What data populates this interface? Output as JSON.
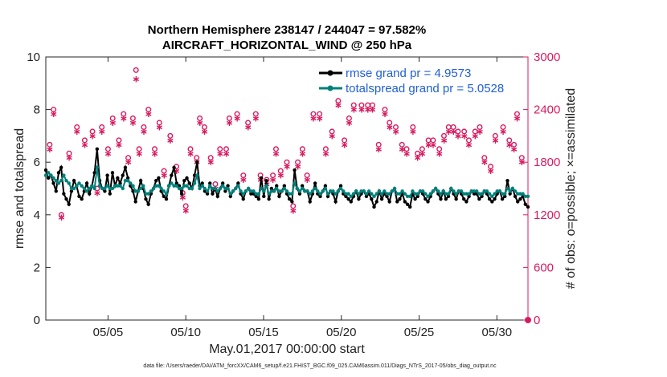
{
  "chart_data": {
    "type": "line",
    "title_line1": "Northern Hemisphere 238147 / 244047 = 97.582%",
    "title_line2": "AIRCRAFT_HORIZONTAL_WIND @ 250 hPa",
    "xlabel": "May.01,2017 00:00:00 start",
    "ylabel_left": "rmse and totalspread",
    "ylabel_right": "# of obs: o=possible; ×=assimilated",
    "footnote": "data file: /Users/raeder/DAI/ATM_forcXX/CAM6_setup/f.e21.FHIST_BGC.f09_025.CAM6assim.011/Diags_NTrS_2017-05/obs_diag_output.nc",
    "xlim": [
      1,
      32
    ],
    "ylim_left": [
      0,
      10
    ],
    "ylim_right": [
      0,
      3000
    ],
    "x_ticks": [
      5,
      10,
      15,
      20,
      25,
      30
    ],
    "x_tick_labels": [
      "05/05",
      "05/10",
      "05/15",
      "05/20",
      "05/25",
      "05/30"
    ],
    "y_left_ticks": [
      0,
      2,
      4,
      6,
      8,
      10
    ],
    "y_left_tick_labels": [
      "0",
      "2",
      "4",
      "6",
      "8",
      "10"
    ],
    "y_right_ticks": [
      0,
      600,
      1200,
      1800,
      2400,
      3000
    ],
    "y_right_tick_labels": [
      "0",
      "600",
      "1200",
      "1800",
      "2400",
      "3000"
    ],
    "colors": {
      "rmse": "#000000",
      "spread": "#00807a",
      "obs": "#d81b60",
      "legend_text": "#1f5fd6",
      "axis": "#262626",
      "right_axis": "#d81b60"
    },
    "series": [
      {
        "name": "rmse grand pr = 4.9573",
        "values": [
          5.7,
          5.4,
          5.5,
          5.2,
          4.9,
          5.6,
          5.8,
          4.8,
          4.6,
          4.4,
          4.9,
          5.3,
          5.1,
          4.7,
          4.6,
          4.9,
          5.2,
          4.8,
          5.1,
          5.6,
          6.5,
          5.3,
          5.0,
          4.9,
          5.5,
          4.8,
          5.6,
          5.1,
          5.4,
          5.2,
          5.5,
          5.8,
          5.4,
          5.1,
          4.9,
          4.5,
          4.9,
          5.3,
          5.0,
          4.6,
          4.4,
          4.8,
          5.0,
          5.3,
          5.4,
          4.9,
          4.7,
          4.6,
          5.1,
          5.5,
          5.8,
          5.2,
          5.1,
          4.8,
          5.3,
          5.4,
          5.2,
          5.0,
          5.5,
          6.0,
          5.1,
          5.2,
          4.9,
          4.8,
          5.2,
          4.8,
          5.0,
          4.7,
          5.0,
          5.2,
          4.9,
          5.1,
          4.7,
          4.9,
          5.0,
          5.2,
          4.8,
          4.6,
          4.9,
          5.0,
          4.8,
          4.8,
          4.7,
          4.6,
          5.4,
          4.7,
          5.3,
          4.6,
          5.0,
          4.9,
          5.1,
          4.7,
          4.9,
          5.1,
          4.8,
          4.6,
          4.5,
          5.7,
          5.0,
          4.8,
          5.1,
          4.9,
          4.9,
          4.5,
          4.8,
          5.2,
          4.8,
          4.7,
          4.9,
          5.1,
          4.7,
          4.9,
          4.8,
          4.5,
          4.9,
          5.1,
          4.8,
          4.7,
          4.6,
          4.5,
          4.7,
          4.9,
          4.6,
          4.8,
          4.9,
          4.7,
          4.8,
          4.6,
          4.3,
          4.5,
          4.9,
          4.6,
          4.8,
          4.7,
          4.5,
          4.9,
          5.0,
          4.5,
          4.6,
          4.8,
          4.5,
          4.4,
          4.3,
          4.8,
          4.6,
          4.7,
          4.9,
          4.8,
          4.6,
          4.5,
          4.7,
          4.9,
          5.0,
          4.8,
          4.6,
          4.9,
          4.6,
          4.7,
          5.0,
          4.8,
          4.6,
          4.9,
          4.8,
          4.6,
          4.5,
          4.7,
          4.9,
          4.8,
          4.8,
          4.6,
          4.7,
          4.9,
          4.8,
          4.6,
          4.5,
          4.6,
          4.8,
          4.9,
          4.6,
          4.7,
          5.3,
          4.8,
          5.0,
          4.7,
          4.5,
          4.6,
          4.7,
          4.4,
          4.3
        ]
      },
      {
        "name": "totalspread grand pr = 5.0528",
        "values": [
          5.5,
          5.6,
          5.5,
          5.4,
          5.3,
          5.2,
          5.3,
          5.5,
          5.3,
          5.2,
          5.0,
          5.0,
          5.1,
          5.2,
          5.1,
          5.0,
          4.9,
          5.0,
          5.1,
          5.0,
          5.8,
          5.1,
          5.0,
          5.0,
          5.1,
          5.0,
          5.0,
          5.1,
          5.1,
          5.1,
          5.0,
          5.3,
          5.3,
          5.2,
          5.1,
          4.9,
          4.9,
          5.0,
          5.1,
          4.8,
          4.8,
          4.9,
          5.0,
          5.1,
          5.1,
          5.0,
          4.9,
          4.8,
          5.1,
          5.2,
          5.1,
          5.1,
          5.0,
          5.0,
          5.1,
          5.1,
          5.0,
          5.0,
          5.2,
          5.5,
          5.0,
          5.1,
          5.0,
          4.9,
          5.1,
          5.0,
          5.0,
          4.9,
          5.0,
          5.1,
          5.0,
          5.0,
          4.8,
          4.9,
          5.0,
          5.1,
          4.9,
          4.8,
          4.9,
          5.0,
          4.9,
          4.9,
          4.8,
          4.8,
          5.0,
          4.9,
          5.1,
          4.8,
          4.9,
          4.9,
          5.0,
          4.9,
          4.9,
          5.0,
          4.9,
          4.8,
          4.8,
          5.2,
          5.0,
          4.9,
          5.0,
          4.9,
          4.9,
          4.8,
          4.9,
          5.0,
          4.9,
          4.8,
          4.9,
          5.0,
          4.8,
          4.9,
          4.9,
          4.8,
          4.9,
          5.0,
          4.9,
          4.8,
          4.8,
          4.7,
          4.8,
          4.9,
          4.8,
          4.9,
          4.9,
          4.8,
          4.9,
          4.8,
          4.7,
          4.8,
          4.9,
          4.8,
          4.9,
          4.8,
          4.8,
          4.9,
          5.0,
          4.8,
          4.8,
          4.9,
          4.8,
          4.7,
          4.7,
          4.9,
          4.8,
          4.8,
          4.9,
          4.9,
          4.8,
          4.7,
          4.8,
          4.9,
          5.0,
          4.9,
          4.8,
          4.9,
          4.8,
          4.8,
          5.0,
          4.9,
          4.8,
          4.9,
          4.9,
          4.8,
          4.8,
          4.8,
          4.9,
          4.9,
          4.9,
          4.8,
          4.8,
          4.9,
          4.9,
          4.8,
          4.7,
          4.8,
          4.9,
          4.9,
          4.8,
          4.8,
          5.0,
          4.9,
          5.0,
          4.9,
          4.8,
          4.8,
          4.8,
          4.7,
          4.7
        ]
      }
    ],
    "obs_possible": [
      [
        1.25,
        2000
      ],
      [
        1.5,
        2400
      ],
      [
        2.0,
        1200
      ],
      [
        2.5,
        1900
      ],
      [
        3.0,
        2200
      ],
      [
        3.5,
        2050
      ],
      [
        4.0,
        2150
      ],
      [
        4.3,
        1500
      ],
      [
        4.6,
        2200
      ],
      [
        5.0,
        1950
      ],
      [
        5.3,
        2300
      ],
      [
        5.7,
        2050
      ],
      [
        6.0,
        2350
      ],
      [
        6.3,
        1850
      ],
      [
        6.6,
        2300
      ],
      [
        6.8,
        2850
      ],
      [
        7.0,
        1950
      ],
      [
        7.3,
        2200
      ],
      [
        7.6,
        2400
      ],
      [
        8.0,
        1950
      ],
      [
        8.3,
        2250
      ],
      [
        8.6,
        1700
      ],
      [
        9.0,
        2100
      ],
      [
        9.4,
        1750
      ],
      [
        9.8,
        1450
      ],
      [
        10.0,
        1300
      ],
      [
        10.3,
        1950
      ],
      [
        10.7,
        1850
      ],
      [
        10.9,
        2300
      ],
      [
        11.2,
        2200
      ],
      [
        11.6,
        1850
      ],
      [
        11.9,
        1550
      ],
      [
        12.2,
        1950
      ],
      [
        12.6,
        1950
      ],
      [
        12.8,
        2300
      ],
      [
        13.3,
        2350
      ],
      [
        13.7,
        1650
      ],
      [
        14.0,
        2250
      ],
      [
        14.5,
        2350
      ],
      [
        14.8,
        1650
      ],
      [
        15.2,
        1600
      ],
      [
        15.6,
        1650
      ],
      [
        15.8,
        1950
      ],
      [
        16.1,
        1700
      ],
      [
        16.5,
        1800
      ],
      [
        16.9,
        1300
      ],
      [
        17.2,
        1800
      ],
      [
        17.5,
        1950
      ],
      [
        17.8,
        1650
      ],
      [
        18.2,
        2350
      ],
      [
        18.6,
        2350
      ],
      [
        19.0,
        1950
      ],
      [
        19.4,
        2150
      ],
      [
        19.8,
        2500
      ],
      [
        20.2,
        2050
      ],
      [
        20.5,
        2300
      ],
      [
        20.8,
        2450
      ],
      [
        21.3,
        2450
      ],
      [
        21.7,
        2450
      ],
      [
        22.0,
        2450
      ],
      [
        22.4,
        2000
      ],
      [
        22.8,
        2400
      ],
      [
        23.1,
        2250
      ],
      [
        23.5,
        2200
      ],
      [
        23.9,
        2000
      ],
      [
        24.2,
        1950
      ],
      [
        24.6,
        2200
      ],
      [
        24.9,
        1900
      ],
      [
        25.2,
        1950
      ],
      [
        25.6,
        2050
      ],
      [
        25.9,
        2050
      ],
      [
        26.3,
        1950
      ],
      [
        26.6,
        2100
      ],
      [
        26.9,
        2200
      ],
      [
        27.2,
        2200
      ],
      [
        27.5,
        2150
      ],
      [
        27.9,
        2150
      ],
      [
        28.2,
        2050
      ],
      [
        28.6,
        2150
      ],
      [
        28.9,
        2200
      ],
      [
        29.2,
        1850
      ],
      [
        29.6,
        1750
      ],
      [
        29.9,
        2100
      ],
      [
        30.4,
        2200
      ],
      [
        30.8,
        2050
      ],
      [
        31.1,
        2000
      ],
      [
        31.3,
        2350
      ],
      [
        31.6,
        1850
      ]
    ],
    "obs_assimilated": [
      [
        1.25,
        1950
      ],
      [
        1.5,
        2350
      ],
      [
        2.0,
        1170
      ],
      [
        2.5,
        1850
      ],
      [
        3.0,
        2150
      ],
      [
        3.5,
        2000
      ],
      [
        4.0,
        2100
      ],
      [
        4.3,
        1450
      ],
      [
        4.6,
        2150
      ],
      [
        5.0,
        1900
      ],
      [
        5.3,
        2250
      ],
      [
        5.7,
        2000
      ],
      [
        6.0,
        2300
      ],
      [
        6.3,
        1800
      ],
      [
        6.6,
        2250
      ],
      [
        6.8,
        2750
      ],
      [
        7.0,
        1900
      ],
      [
        7.3,
        2150
      ],
      [
        7.6,
        2350
      ],
      [
        8.0,
        1900
      ],
      [
        8.3,
        2200
      ],
      [
        8.6,
        1650
      ],
      [
        9.0,
        2050
      ],
      [
        9.4,
        1700
      ],
      [
        9.8,
        1400
      ],
      [
        10.0,
        1250
      ],
      [
        10.3,
        1900
      ],
      [
        10.7,
        1800
      ],
      [
        10.9,
        2250
      ],
      [
        11.2,
        2150
      ],
      [
        11.6,
        1800
      ],
      [
        11.9,
        1500
      ],
      [
        12.2,
        1900
      ],
      [
        12.6,
        1900
      ],
      [
        12.8,
        2250
      ],
      [
        13.3,
        2300
      ],
      [
        13.7,
        1600
      ],
      [
        14.0,
        2200
      ],
      [
        14.5,
        2300
      ],
      [
        14.8,
        1600
      ],
      [
        15.2,
        1550
      ],
      [
        15.6,
        1600
      ],
      [
        15.8,
        1900
      ],
      [
        16.1,
        1650
      ],
      [
        16.5,
        1750
      ],
      [
        16.9,
        1250
      ],
      [
        17.2,
        1750
      ],
      [
        17.5,
        1900
      ],
      [
        17.8,
        1600
      ],
      [
        18.2,
        2300
      ],
      [
        18.6,
        2300
      ],
      [
        19.0,
        1900
      ],
      [
        19.4,
        2100
      ],
      [
        19.8,
        2450
      ],
      [
        20.2,
        2000
      ],
      [
        20.5,
        2250
      ],
      [
        20.8,
        2400
      ],
      [
        21.3,
        2400
      ],
      [
        21.7,
        2400
      ],
      [
        22.0,
        2400
      ],
      [
        22.4,
        1950
      ],
      [
        22.8,
        2350
      ],
      [
        23.1,
        2200
      ],
      [
        23.5,
        2150
      ],
      [
        23.9,
        1950
      ],
      [
        24.2,
        1900
      ],
      [
        24.6,
        2150
      ],
      [
        24.9,
        1850
      ],
      [
        25.2,
        1900
      ],
      [
        25.6,
        2000
      ],
      [
        25.9,
        2000
      ],
      [
        26.3,
        1900
      ],
      [
        26.6,
        2050
      ],
      [
        26.9,
        2150
      ],
      [
        27.2,
        2150
      ],
      [
        27.5,
        2100
      ],
      [
        27.9,
        2100
      ],
      [
        28.2,
        2000
      ],
      [
        28.6,
        2100
      ],
      [
        28.9,
        2150
      ],
      [
        29.2,
        1800
      ],
      [
        29.6,
        1700
      ],
      [
        29.9,
        2050
      ],
      [
        30.4,
        2150
      ],
      [
        30.8,
        2000
      ],
      [
        31.1,
        1950
      ],
      [
        31.3,
        2300
      ],
      [
        31.6,
        1800
      ]
    ],
    "zero_marker": [
      32,
      0
    ]
  }
}
